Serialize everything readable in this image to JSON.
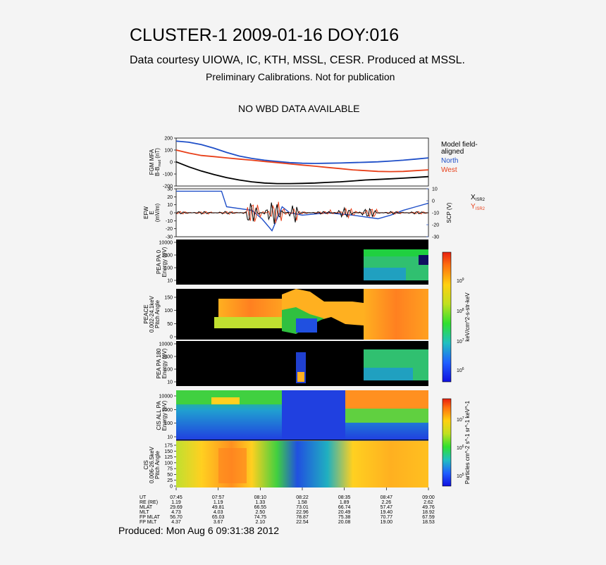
{
  "header": {
    "title": "CLUSTER-1 2009-01-16 DOY:016",
    "courtesy": "Data courtesy UIOWA, IC, KTH, MSSL, CESR. Produced at MSSL.",
    "calibration": "Preliminary Calibrations. Not for publication",
    "wbd_notice": "NO WBD DATA AVAILABLE"
  },
  "footer": {
    "produced": "Produced: Mon Aug  6 09:31:38 2012"
  },
  "colors": {
    "north": "#1f4fc8",
    "west": "#e8401a",
    "black": "#000000",
    "background": "#f4f4f4"
  },
  "chart_data": [
    {
      "type": "line",
      "panel": "fgm",
      "ylabel": [
        "FGM MFA",
        "B-Bmod (nT)"
      ],
      "ylabel_sub": "B-B",
      "ylabel_sub2": "mod",
      "ylabel_unit": "(nT)",
      "ylim": [
        -200,
        200
      ],
      "yticks": [
        200,
        100,
        0,
        -100,
        -200
      ],
      "series": [
        {
          "name": "Model field-aligned",
          "color": "#000000",
          "x": [
            0,
            0.05,
            0.1,
            0.15,
            0.2,
            0.25,
            0.3,
            0.35,
            0.4,
            0.45,
            0.5,
            0.55,
            0.6,
            0.65,
            0.7,
            0.75,
            0.8,
            0.85,
            0.9,
            0.95,
            1
          ],
          "values": [
            2,
            -40,
            -75,
            -105,
            -130,
            -150,
            -165,
            -175,
            -180,
            -180,
            -178,
            -175,
            -170,
            -165,
            -158,
            -150,
            -145,
            -140,
            -135,
            -128,
            -122
          ]
        },
        {
          "name": "North",
          "color": "#1f4fc8",
          "x": [
            0,
            0.05,
            0.1,
            0.15,
            0.2,
            0.25,
            0.3,
            0.35,
            0.4,
            0.45,
            0.5,
            0.55,
            0.6,
            0.65,
            0.7,
            0.75,
            0.8,
            0.85,
            0.9,
            0.95,
            1
          ],
          "values": [
            175,
            165,
            145,
            115,
            80,
            50,
            30,
            15,
            5,
            -5,
            -10,
            -12,
            -10,
            -8,
            -5,
            -2,
            2,
            8,
            15,
            25,
            35
          ]
        },
        {
          "name": "West",
          "color": "#e8401a",
          "x": [
            0,
            0.05,
            0.1,
            0.15,
            0.2,
            0.25,
            0.3,
            0.35,
            0.4,
            0.45,
            0.5,
            0.55,
            0.6,
            0.65,
            0.7,
            0.75,
            0.8,
            0.85,
            0.9,
            0.95,
            1
          ],
          "values": [
            100,
            75,
            55,
            45,
            35,
            25,
            15,
            5,
            -5,
            -15,
            -25,
            -35,
            -45,
            -55,
            -65,
            -72,
            -78,
            -80,
            -78,
            -72,
            -65
          ]
        }
      ],
      "legend": [
        "Model field-",
        "aligned",
        "North",
        "West"
      ]
    },
    {
      "type": "line",
      "panel": "efw",
      "ylabel": [
        "EFW",
        "E",
        "(mV/m)"
      ],
      "ylim": [
        -30,
        30
      ],
      "yticks": [
        30,
        20,
        10,
        0,
        -10,
        -20,
        -30
      ],
      "y2label": "SCP (V)",
      "y2lim": [
        -30,
        10
      ],
      "y2ticks": [
        10,
        0,
        -10,
        -20,
        -30
      ],
      "series": [
        {
          "name": "X",
          "sub": "ISR2",
          "color": "#000000"
        },
        {
          "name": "Y",
          "sub": "ISR2",
          "color": "#e8401a"
        },
        {
          "name": "SCP",
          "color": "#1f4fc8",
          "x": [
            0,
            0.18,
            0.2,
            0.3,
            0.34,
            0.36,
            0.38,
            0.4,
            0.42,
            0.45,
            0.5,
            0.6,
            0.7,
            0.8,
            0.85,
            0.9,
            0.95,
            1
          ],
          "values": [
            8,
            8,
            -5,
            -8,
            -15,
            -20,
            -25,
            -15,
            -5,
            -10,
            -12,
            -10,
            -12,
            -15,
            -12,
            -8,
            -5,
            -2
          ]
        }
      ]
    },
    {
      "type": "heatmap",
      "panel": "pea_pa0",
      "ylabel": [
        "PEA PA 0",
        "Energy (eV)"
      ],
      "yticks": [
        "10000",
        "1000",
        "100",
        "10"
      ]
    },
    {
      "type": "heatmap",
      "panel": "peace_pitch",
      "ylabel": [
        "PEACE",
        "0.002-24.1keV",
        "Pitch Angle"
      ],
      "yticks": [
        "150",
        "100",
        "50",
        "0"
      ]
    },
    {
      "type": "heatmap",
      "panel": "pea_pa180",
      "ylabel": [
        "PEA PA 180",
        "Energy (eV)"
      ],
      "yticks": [
        "10000",
        "1000",
        "100",
        "10"
      ]
    },
    {
      "type": "heatmap",
      "panel": "cis_all_pa",
      "ylabel": [
        "CIS ALL PA",
        "Energy (eV)"
      ],
      "yticks": [
        "10000",
        "1000",
        "100",
        "10"
      ]
    },
    {
      "type": "heatmap",
      "panel": "cis_pitch",
      "ylabel": [
        "CIS",
        "0.006-26.5keV",
        "Pitch Angle"
      ],
      "yticks": [
        "175",
        "150",
        "125",
        "100",
        "75",
        "50",
        "25",
        "0"
      ]
    }
  ],
  "colorbars": [
    {
      "label": "keV/cm^2-s-str-keV",
      "ticks": [
        "10^9",
        "10^8",
        "10^7",
        "10^6"
      ]
    },
    {
      "label": "Particles cm^-2 s^-1 sr^-1 keV^-1",
      "ticks": [
        "10^7",
        "10^6",
        "10^5"
      ]
    }
  ],
  "ephemeris": {
    "labels": [
      "UT",
      "RE (RE)",
      "MLAT",
      "MLT",
      "FP MLAT",
      "FP MLT"
    ],
    "columns": [
      [
        "07:45",
        "1.19",
        "29.69",
        "4.73",
        "56.70",
        "4.37"
      ],
      [
        "07:57",
        "1.19",
        "49.81",
        "4.03",
        "65.03",
        "3.67"
      ],
      [
        "08:10",
        "1.33",
        "66.55",
        "2.50",
        "74.75",
        "2.10"
      ],
      [
        "08:22",
        "1.58",
        "73.01",
        "22.96",
        "78.87",
        "22.54"
      ],
      [
        "08:35",
        "1.89",
        "66.74",
        "20.49",
        "75.38",
        "20.08"
      ],
      [
        "08:47",
        "2.26",
        "57.47",
        "19.40",
        "70.77",
        "19.00"
      ],
      [
        "09:00",
        "2.62",
        "49.76",
        "18.92",
        "67.59",
        "18.53"
      ]
    ]
  }
}
